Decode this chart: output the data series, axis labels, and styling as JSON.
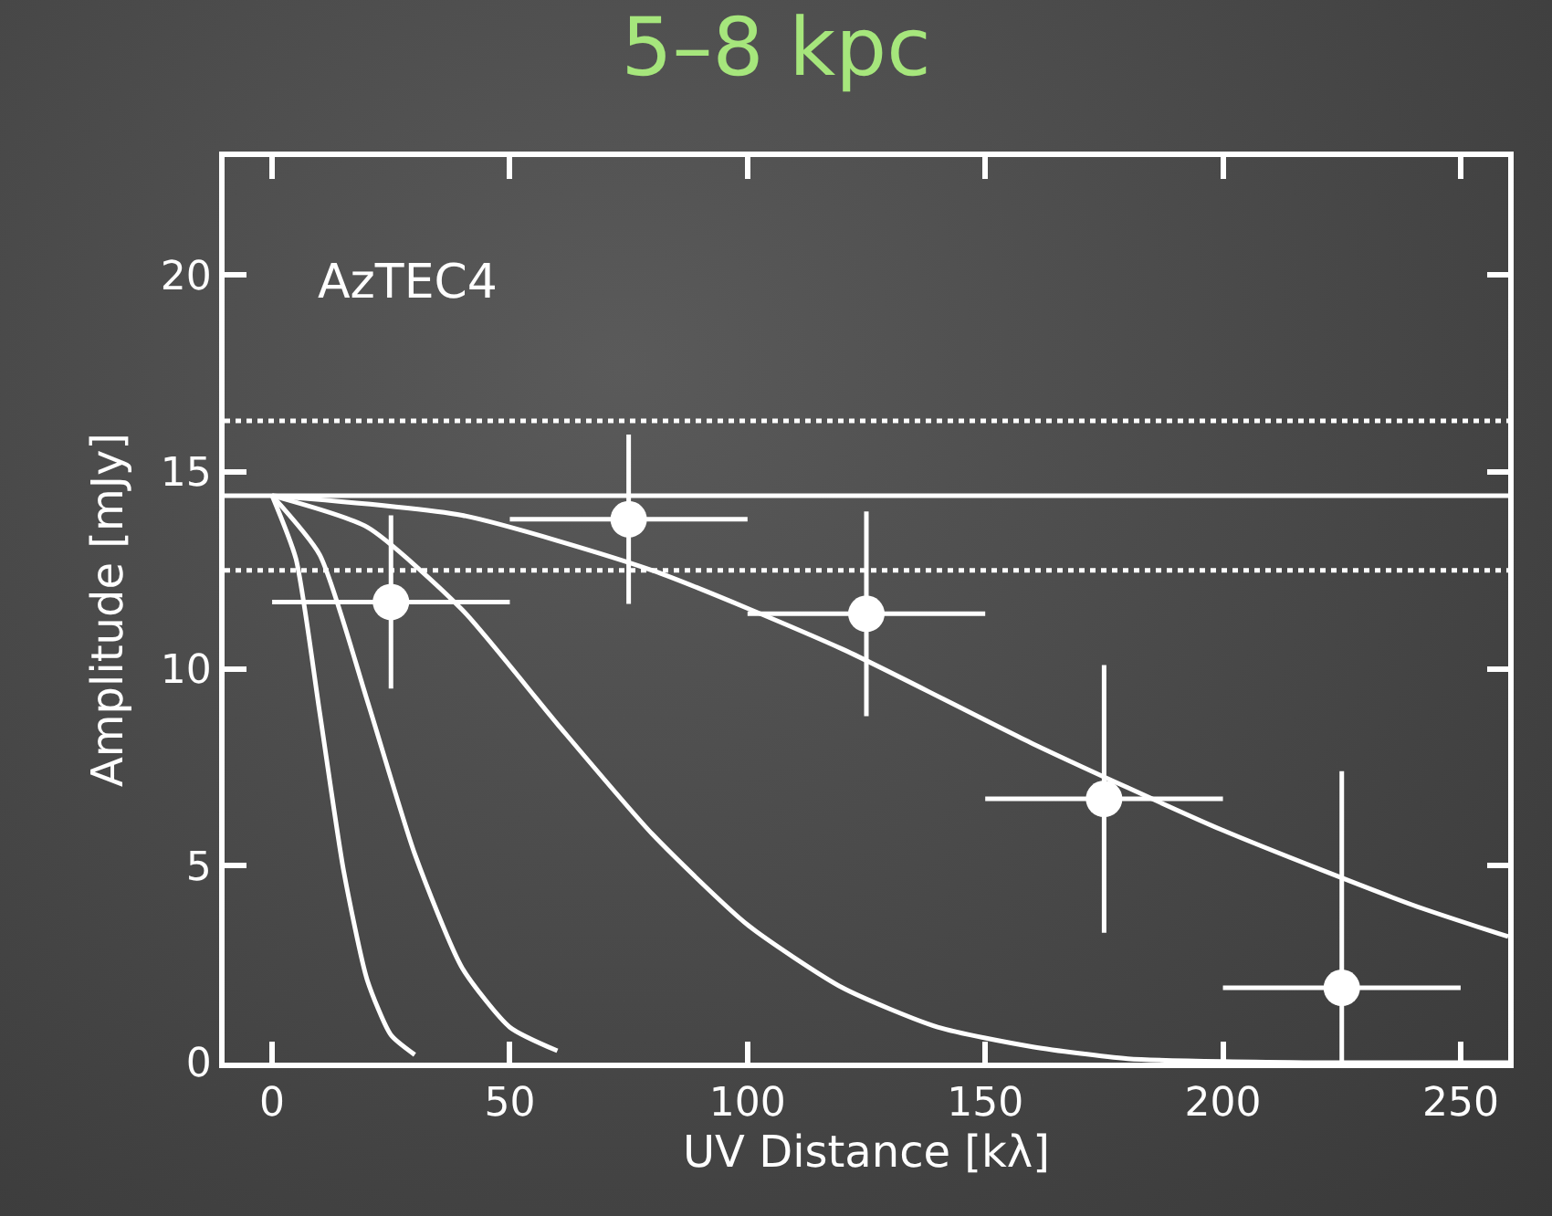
{
  "chart_data": {
    "type": "scatter",
    "title": "5–8 kpc",
    "xlabel": "UV Distance [kλ]",
    "ylabel": "Amplitude [mJy]",
    "xlim": [
      -10,
      260
    ],
    "ylim": [
      0,
      23
    ],
    "xticks": [
      0,
      50,
      100,
      150,
      200,
      250
    ],
    "yticks": [
      0,
      5,
      10,
      15,
      20
    ],
    "grid": false,
    "legend": false,
    "marker": "circle",
    "line_style": "solid",
    "annotations": [
      "AzTEC4"
    ],
    "ref_lines": [
      {
        "axis": "y",
        "value": 14.4,
        "color": "#ffffff",
        "line_style": "solid"
      },
      {
        "axis": "y",
        "value": 16.3,
        "color": "#ffffff",
        "line_style": "dotted"
      },
      {
        "axis": "y",
        "value": 12.5,
        "color": "#ffffff",
        "line_style": "dotted"
      }
    ],
    "series": [
      {
        "color": "#ffffff",
        "x": [
          25,
          75,
          125,
          175,
          225
        ],
        "values": [
          11.7,
          13.8,
          11.4,
          6.7,
          1.9
        ],
        "errors": [
          2.2,
          2.15,
          2.6,
          3.4,
          [
            0,
            7.4
          ]
        ],
        "xerrors": [
          25,
          25,
          25,
          25,
          25
        ]
      },
      {
        "type": "line",
        "marker": "none",
        "color": "#ffffff",
        "x": [
          0,
          5,
          10,
          15,
          20,
          25,
          30
        ],
        "values": [
          14.4,
          12.8,
          8.9,
          4.9,
          2.1,
          0.7,
          0.2
        ]
      },
      {
        "type": "line",
        "marker": "none",
        "color": "#ffffff",
        "x": [
          0,
          10,
          20,
          30,
          40,
          50,
          60
        ],
        "values": [
          14.4,
          12.9,
          9.2,
          5.3,
          2.4,
          0.9,
          0.3
        ]
      },
      {
        "type": "line",
        "marker": "none",
        "color": "#ffffff",
        "x": [
          0,
          20,
          40,
          60,
          80,
          100,
          120,
          140,
          160,
          180,
          220,
          260
        ],
        "values": [
          14.4,
          13.6,
          11.5,
          8.6,
          5.8,
          3.5,
          1.9,
          0.9,
          0.4,
          0.1,
          0,
          0
        ]
      },
      {
        "type": "line",
        "marker": "none",
        "color": "#ffffff",
        "x": [
          0,
          40,
          80,
          120,
          160,
          200,
          240,
          260
        ],
        "values": [
          14.4,
          13.9,
          12.5,
          10.5,
          8.1,
          5.9,
          4.0,
          3.2
        ]
      }
    ]
  }
}
